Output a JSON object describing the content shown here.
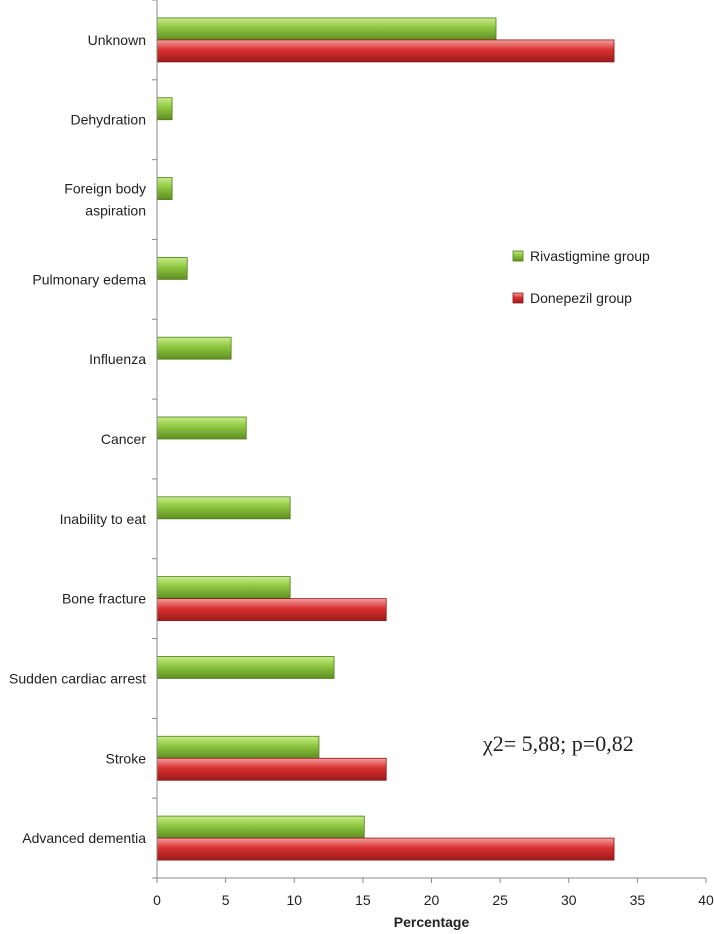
{
  "chart_data": {
    "type": "bar",
    "orientation": "horizontal",
    "categories": [
      "Unknown",
      "Dehydration",
      "Foreign body aspiration",
      "Pulmonary edema",
      "Influenza",
      "Cancer",
      "Inability to eat",
      "Bone fracture",
      "Sudden cardiac arrest",
      "Stroke",
      "Advanced dementia"
    ],
    "category_lines": [
      [
        "Unknown"
      ],
      [
        "Dehydration"
      ],
      [
        "Foreign body",
        "aspiration"
      ],
      [
        "Pulmonary edema"
      ],
      [
        "Influenza"
      ],
      [
        "Cancer"
      ],
      [
        "Inability to eat"
      ],
      [
        "Bone fracture"
      ],
      [
        "Sudden cardiac arrest"
      ],
      [
        "Stroke"
      ],
      [
        "Advanced dementia"
      ]
    ],
    "series": [
      {
        "name": "Rivastigmine group",
        "color": "#8dc63f",
        "values": [
          24.7,
          1.1,
          1.1,
          2.2,
          5.4,
          6.5,
          9.7,
          9.7,
          12.9,
          11.8,
          15.1
        ]
      },
      {
        "name": "Donepezil group",
        "color": "#d9302f",
        "values": [
          33.3,
          0,
          0,
          0,
          0,
          0,
          0,
          16.7,
          0,
          16.7,
          33.3
        ]
      }
    ],
    "xlabel": "Percentage",
    "ylabel": "",
    "xlim": [
      0,
      40
    ],
    "xticks": [
      0,
      5,
      10,
      15,
      20,
      25,
      30,
      35,
      40
    ],
    "grid": false,
    "legend_position": "right",
    "annotation": "χ2= 5,88;  p=0,82"
  }
}
